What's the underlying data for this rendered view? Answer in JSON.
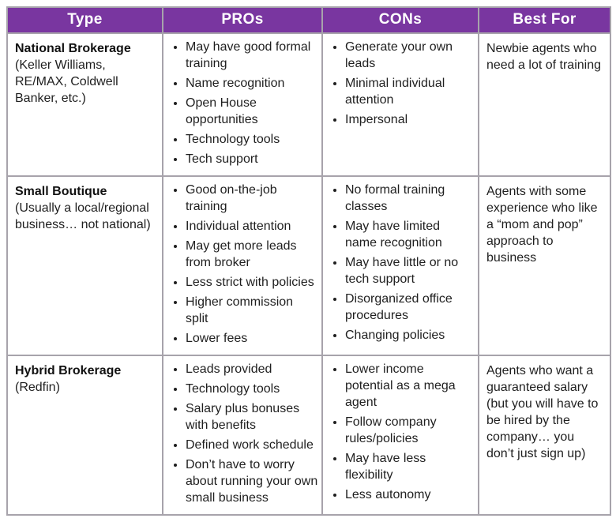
{
  "colors": {
    "header_bg": "#7936a0",
    "header_text": "#ffffff",
    "grid_border": "#a7a3ab",
    "body_text": "#1f1f1f"
  },
  "table": {
    "headers": {
      "type": "Type",
      "pros": "PROs",
      "cons": "CONs",
      "best_for": "Best For"
    },
    "rows": [
      {
        "type_title": "National Brokerage",
        "type_subtitle": "(Keller Williams, RE/MAX, Coldwell Banker, etc.)",
        "pros": [
          "May have good formal training",
          "Name recognition",
          "Open House opportunities",
          "Technology tools",
          "Tech support"
        ],
        "cons": [
          "Generate your own leads",
          "Minimal individual attention",
          "Impersonal"
        ],
        "best_for": "Newbie agents who need a lot of training"
      },
      {
        "type_title": "Small Boutique",
        "type_subtitle": "(Usually a local/regional business… not national)",
        "pros": [
          "Good on-the-job training",
          "Individual attention",
          "May get more leads from broker",
          "Less strict with policies",
          "Higher commission split",
          "Lower fees"
        ],
        "cons": [
          "No formal training classes",
          "May have limited name recognition",
          "May have little or no tech support",
          "Disorganized office procedures",
          "Changing policies"
        ],
        "best_for": "Agents with some experience who like a “mom and pop” approach to business"
      },
      {
        "type_title": "Hybrid Brokerage",
        "type_subtitle": "(Redfin)",
        "pros": [
          "Leads provided",
          "Technology tools",
          "Salary plus bonuses with benefits",
          "Defined work schedule",
          "Don’t have to worry about running your own small business"
        ],
        "cons": [
          "Lower income potential as a mega agent",
          "Follow company rules/policies",
          "May have less flexibility",
          "Less autonomy"
        ],
        "best_for": "Agents who want a guaranteed salary (but you will have to be hired by the company… you don’t just sign up)"
      }
    ]
  }
}
